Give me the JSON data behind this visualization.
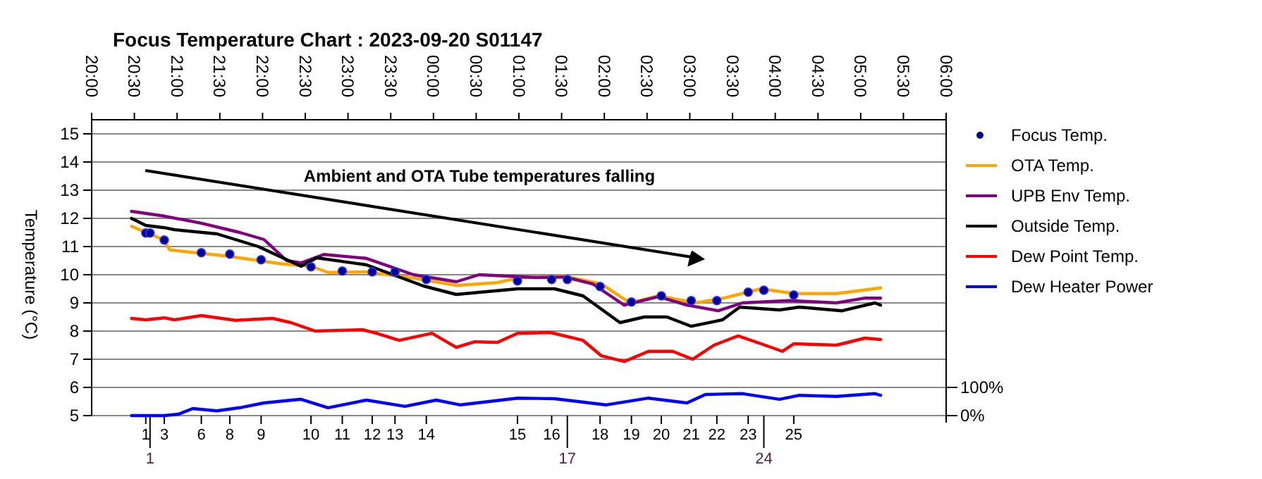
{
  "chart_data": {
    "type": "line",
    "title": "Focus Temperature Chart : 2023-09-20 S01147",
    "ylabel": "Temperature (°C)",
    "xlim": [
      "2023-09-20T20:00",
      "2023-09-21T06:00"
    ],
    "xticks": [
      {
        "value": "2023-09-20T20:00",
        "label": "20:00"
      },
      {
        "value": "2023-09-20T20:30",
        "label": "20:30"
      },
      {
        "value": "2023-09-20T21:00",
        "label": "21:00"
      },
      {
        "value": "2023-09-20T21:30",
        "label": "21:30"
      },
      {
        "value": "2023-09-20T22:00",
        "label": "22:00"
      },
      {
        "value": "2023-09-20T22:30",
        "label": "22:30"
      },
      {
        "value": "2023-09-20T23:00",
        "label": "23:00"
      },
      {
        "value": "2023-09-20T23:30",
        "label": "23:30"
      },
      {
        "value": "2023-09-21T00:00",
        "label": "00:00"
      },
      {
        "value": "2023-09-21T00:30",
        "label": "00:30"
      },
      {
        "value": "2023-09-21T01:00",
        "label": "01:00"
      },
      {
        "value": "2023-09-21T01:30",
        "label": "01:30"
      },
      {
        "value": "2023-09-21T02:00",
        "label": "02:00"
      },
      {
        "value": "2023-09-21T02:30",
        "label": "02:30"
      },
      {
        "value": "2023-09-21T03:00",
        "label": "03:00"
      },
      {
        "value": "2023-09-21T03:30",
        "label": "03:30"
      },
      {
        "value": "2023-09-21T04:00",
        "label": "04:00"
      },
      {
        "value": "2023-09-21T04:30",
        "label": "04:30"
      },
      {
        "value": "2023-09-21T05:00",
        "label": "05:00"
      },
      {
        "value": "2023-09-21T05:30",
        "label": "05:30"
      },
      {
        "value": "2023-09-21T06:00",
        "label": "06:00"
      }
    ],
    "ylim": [
      5,
      15
    ],
    "yticks": [
      5,
      6,
      7,
      8,
      9,
      10,
      11,
      12,
      13,
      14,
      15
    ],
    "y2lim": [
      0,
      1000
    ],
    "y2ticks": [
      {
        "value": 0,
        "label": "0%"
      },
      {
        "value": 100,
        "label": "100%"
      }
    ],
    "grid": "y",
    "legend": "right",
    "annotations": [
      "Ambient and OTA Tube temperatures falling",
      "1",
      "1",
      "3",
      "6",
      "8",
      "9",
      "10",
      "11",
      "12",
      "13",
      "14",
      "15",
      "16",
      "17",
      "18",
      "19",
      "20",
      "21",
      "22",
      "23",
      "24",
      "25"
    ],
    "series": [
      {
        "name": "Focus Temp.",
        "type": "scatter",
        "marker": "circle",
        "color": "#00008b",
        "x": [
          "2023-09-20T20:38",
          "2023-09-20T20:41",
          "2023-09-20T20:51",
          "2023-09-20T21:17",
          "2023-09-20T21:37",
          "2023-09-20T21:59",
          "2023-09-20T22:34",
          "2023-09-20T22:56",
          "2023-09-20T23:17",
          "2023-09-20T23:33",
          "2023-09-20T23:55",
          "2023-09-21T00:59",
          "2023-09-21T01:23",
          "2023-09-21T01:34",
          "2023-09-21T01:57",
          "2023-09-21T02:19",
          "2023-09-21T02:40",
          "2023-09-21T03:01",
          "2023-09-21T03:19",
          "2023-09-21T03:41",
          "2023-09-21T03:52",
          "2023-09-21T04:13"
        ],
        "values": [
          11.48,
          11.48,
          11.23,
          10.78,
          10.73,
          10.53,
          10.28,
          10.13,
          10.1,
          10.1,
          9.83,
          9.78,
          9.83,
          9.83,
          9.58,
          9.03,
          9.25,
          9.08,
          9.08,
          9.38,
          9.45,
          9.28
        ]
      },
      {
        "name": "OTA Temp.",
        "color": "#ffa500",
        "x": [
          "2023-09-20T20:28",
          "2023-09-20T20:50",
          "2023-09-20T20:55",
          "2023-09-20T21:34",
          "2023-09-20T22:14",
          "2023-09-20T22:34",
          "2023-09-20T22:46",
          "2023-09-20T23:13",
          "2023-09-20T23:46",
          "2023-09-21T00:16",
          "2023-09-21T00:45",
          "2023-09-21T00:59",
          "2023-09-21T01:05",
          "2023-09-21T01:32",
          "2023-09-21T01:58",
          "2023-09-21T02:18",
          "2023-09-21T02:38",
          "2023-09-21T03:04",
          "2023-09-21T03:24",
          "2023-09-21T03:50",
          "2023-09-21T04:13",
          "2023-09-21T04:43",
          "2023-09-21T05:14"
        ],
        "values": [
          11.72,
          11.25,
          10.88,
          10.67,
          10.38,
          10.3,
          10.08,
          10.1,
          9.88,
          9.62,
          9.72,
          9.88,
          9.9,
          9.95,
          9.67,
          9.0,
          9.25,
          9.0,
          9.17,
          9.5,
          9.33,
          9.33,
          9.53
        ]
      },
      {
        "name": "UPB Env Temp.",
        "color": "#800080",
        "x": [
          "2023-09-20T20:28",
          "2023-09-20T20:51",
          "2023-09-20T21:17",
          "2023-09-20T21:44",
          "2023-09-20T22:01",
          "2023-09-20T22:17",
          "2023-09-20T22:27",
          "2023-09-20T22:43",
          "2023-09-20T23:13",
          "2023-09-20T23:46",
          "2023-09-21T00:16",
          "2023-09-21T00:32",
          "2023-09-21T01:12",
          "2023-09-21T01:32",
          "2023-09-21T01:52",
          "2023-09-21T02:14",
          "2023-09-21T02:38",
          "2023-09-21T02:58",
          "2023-09-21T03:20",
          "2023-09-21T03:37",
          "2023-09-21T04:10",
          "2023-09-21T04:43",
          "2023-09-21T05:03",
          "2023-09-21T05:14"
        ],
        "values": [
          12.25,
          12.08,
          11.83,
          11.5,
          11.25,
          10.5,
          10.42,
          10.72,
          10.58,
          10.0,
          9.75,
          10.0,
          9.9,
          9.92,
          9.67,
          8.92,
          9.22,
          8.92,
          8.72,
          9.0,
          9.08,
          9.0,
          9.17,
          9.17
        ]
      },
      {
        "name": "Outside Temp.",
        "color": "#000000",
        "x": [
          "2023-09-20T20:28",
          "2023-09-20T20:38",
          "2023-09-20T20:51",
          "2023-09-20T20:58",
          "2023-09-20T21:28",
          "2023-09-20T21:57",
          "2023-09-20T22:27",
          "2023-09-20T22:38",
          "2023-09-20T23:13",
          "2023-09-20T23:53",
          "2023-09-21T00:16",
          "2023-09-21T00:59",
          "2023-09-21T01:25",
          "2023-09-21T01:45",
          "2023-09-21T02:11",
          "2023-09-21T02:28",
          "2023-09-21T02:44",
          "2023-09-21T03:01",
          "2023-09-21T03:23",
          "2023-09-21T03:35",
          "2023-09-21T04:03",
          "2023-09-21T04:17",
          "2023-09-21T04:47",
          "2023-09-21T05:10",
          "2023-09-21T05:14"
        ],
        "values": [
          12.0,
          11.75,
          11.67,
          11.6,
          11.45,
          11.0,
          10.3,
          10.6,
          10.35,
          9.6,
          9.3,
          9.5,
          9.5,
          9.25,
          8.3,
          8.5,
          8.5,
          8.17,
          8.4,
          8.85,
          8.75,
          8.85,
          8.72,
          9.0,
          8.92
        ]
      },
      {
        "name": "Dew Point Temp.",
        "color": "#ff0000",
        "x": [
          "2023-09-20T20:28",
          "2023-09-20T20:38",
          "2023-09-20T20:51",
          "2023-09-20T20:58",
          "2023-09-20T21:17",
          "2023-09-20T21:41",
          "2023-09-20T22:07",
          "2023-09-20T22:20",
          "2023-09-20T22:37",
          "2023-09-20T23:10",
          "2023-09-20T23:20",
          "2023-09-20T23:36",
          "2023-09-20T23:59",
          "2023-09-21T00:16",
          "2023-09-21T00:29",
          "2023-09-21T00:45",
          "2023-09-21T00:59",
          "2023-09-21T01:22",
          "2023-09-21T01:45",
          "2023-09-21T01:58",
          "2023-09-21T02:14",
          "2023-09-21T02:31",
          "2023-09-21T02:48",
          "2023-09-21T03:02",
          "2023-09-21T03:17",
          "2023-09-21T03:34",
          "2023-09-21T03:50",
          "2023-09-21T04:05",
          "2023-09-21T04:13",
          "2023-09-21T04:43",
          "2023-09-21T05:03",
          "2023-09-21T05:14"
        ],
        "values": [
          8.45,
          8.4,
          8.47,
          8.4,
          8.55,
          8.38,
          8.45,
          8.3,
          8.0,
          8.05,
          7.92,
          7.67,
          7.92,
          7.42,
          7.62,
          7.6,
          7.92,
          7.95,
          7.67,
          7.12,
          6.92,
          7.28,
          7.28,
          7.0,
          7.5,
          7.83,
          7.55,
          7.28,
          7.55,
          7.5,
          7.75,
          7.7
        ]
      },
      {
        "name": "Dew Heater Power",
        "color": "#0000ff",
        "axis": "y2",
        "x": [
          "2023-09-20T20:28",
          "2023-09-20T20:51",
          "2023-09-20T21:01",
          "2023-09-20T21:11",
          "2023-09-20T21:28",
          "2023-09-20T21:44",
          "2023-09-20T22:01",
          "2023-09-20T22:27",
          "2023-09-20T22:46",
          "2023-09-20T23:13",
          "2023-09-20T23:40",
          "2023-09-21T00:02",
          "2023-09-21T00:19",
          "2023-09-21T00:59",
          "2023-09-21T01:25",
          "2023-09-21T02:01",
          "2023-09-21T02:31",
          "2023-09-21T02:58",
          "2023-09-21T03:11",
          "2023-09-21T03:37",
          "2023-09-21T04:03",
          "2023-09-21T04:17",
          "2023-09-21T04:43",
          "2023-09-21T05:10",
          "2023-09-21T05:14"
        ],
        "values": [
          0,
          0,
          5,
          25,
          17,
          28,
          45,
          58,
          28,
          55,
          33,
          55,
          38,
          62,
          60,
          38,
          62,
          45,
          75,
          78,
          58,
          72,
          68,
          78,
          72
        ]
      }
    ]
  }
}
